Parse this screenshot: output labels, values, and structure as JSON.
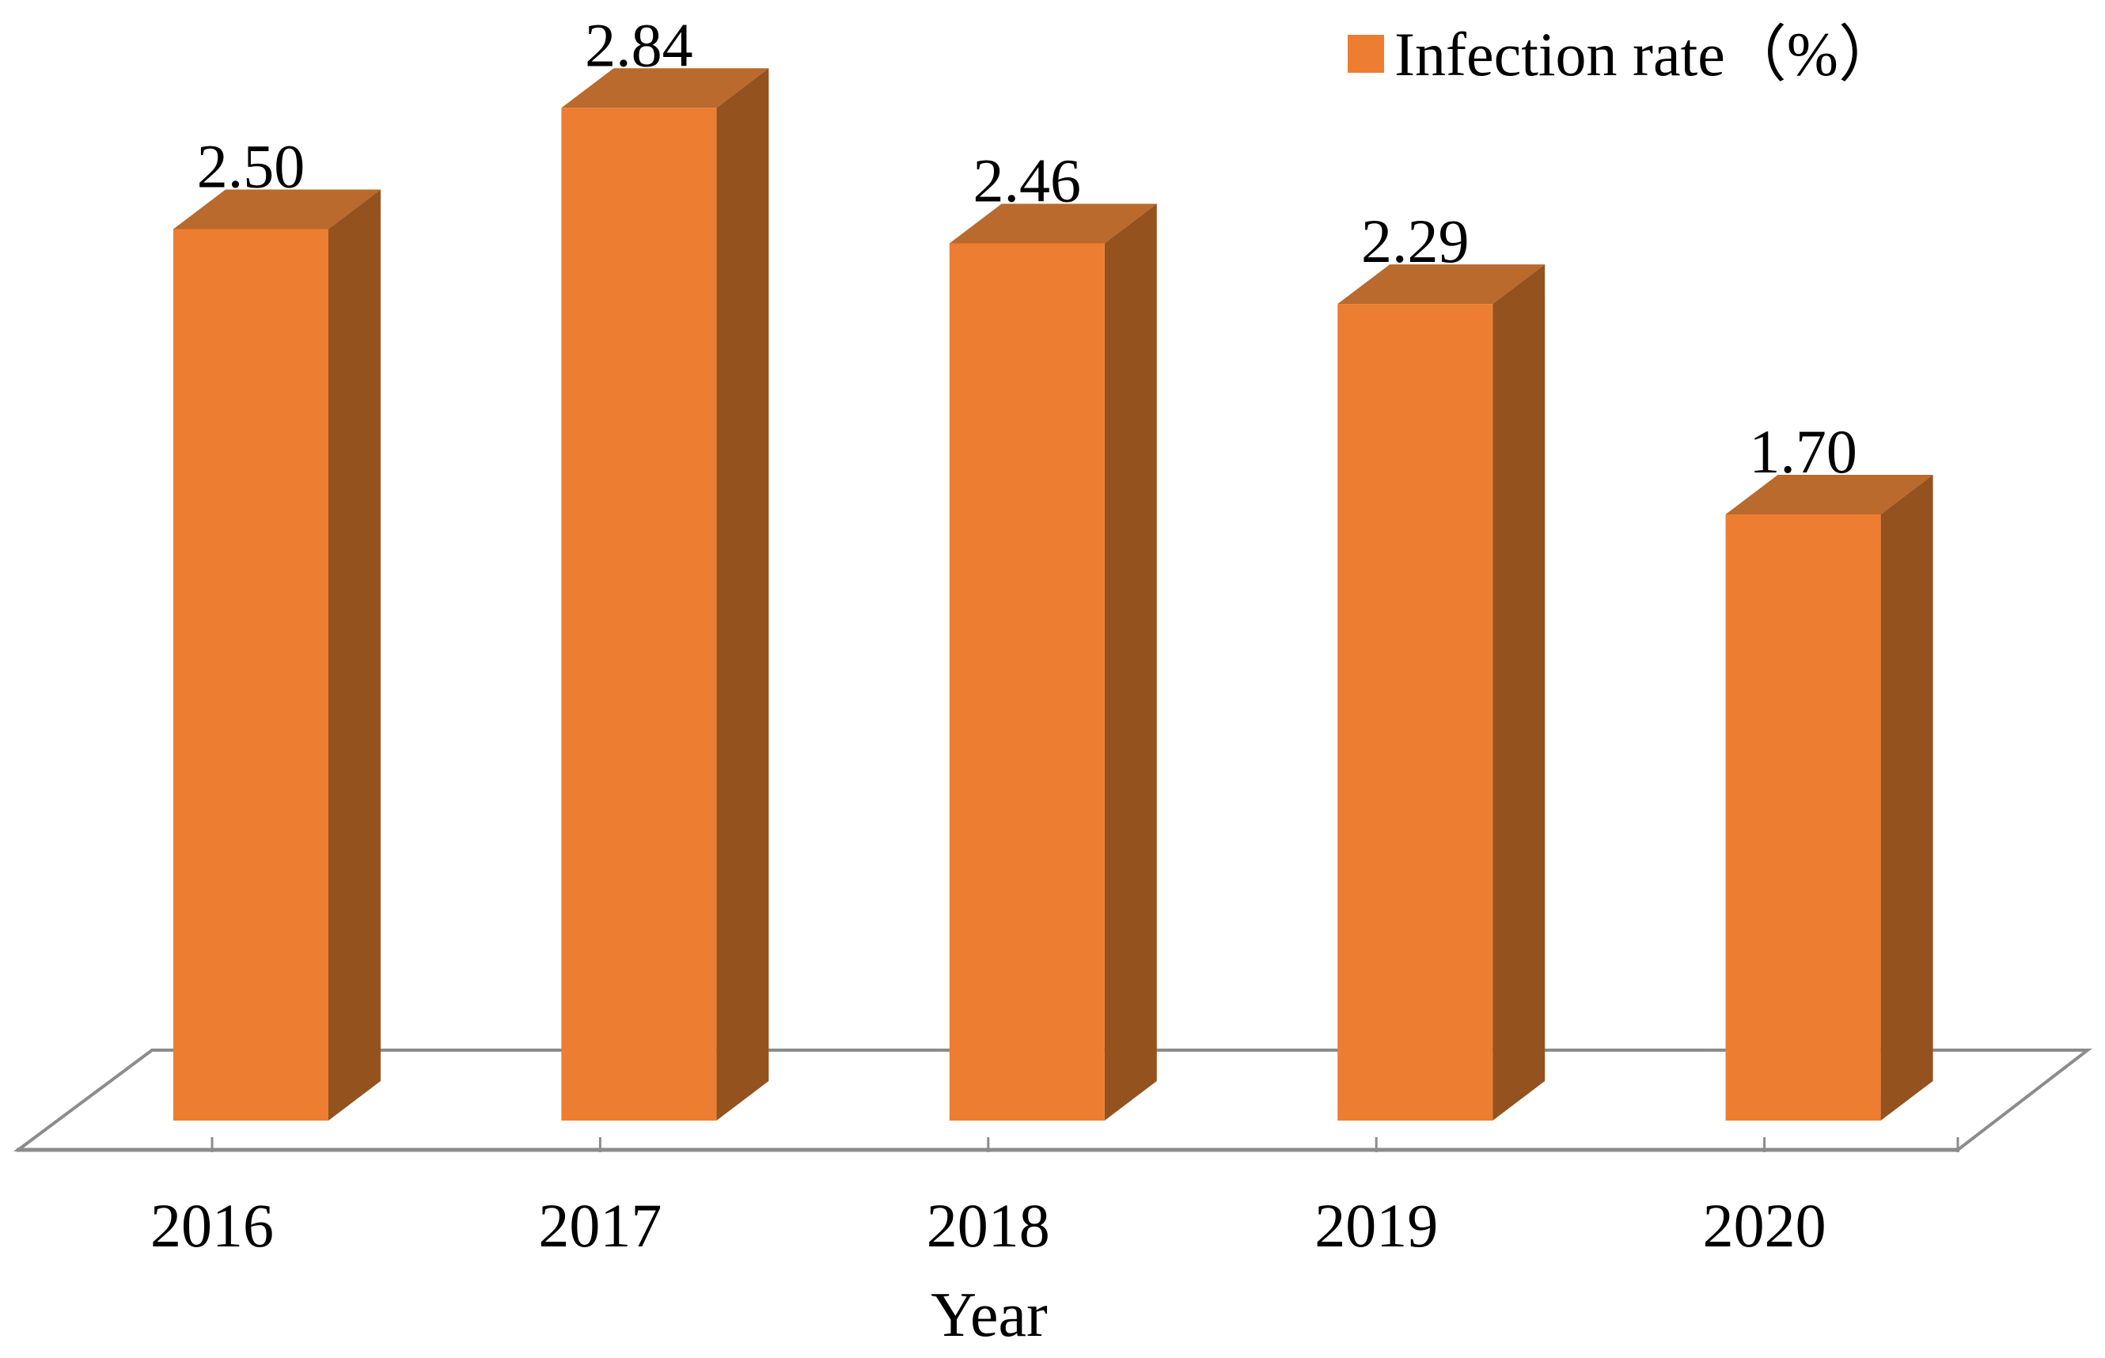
{
  "chart_data": {
    "type": "bar",
    "projection": "3d",
    "categories": [
      "2016",
      "2017",
      "2018",
      "2019",
      "2020"
    ],
    "series": [
      {
        "name": "Infection rate（%）",
        "values": [
          2.5,
          2.84,
          2.46,
          2.29,
          1.7
        ]
      }
    ],
    "data_labels": [
      "2.50",
      "2.84",
      "2.46",
      "2.29",
      "1.70"
    ],
    "title": "",
    "xlabel": "Year",
    "ylabel": "",
    "ylim": [
      0,
      3.2
    ],
    "grid": false,
    "legend_position": "top-right",
    "colors": {
      "bar_front": "#ED7D31",
      "bar_top": "#B96A2C",
      "bar_side": "#94521F",
      "axis_line": "#8C8C8C",
      "text": "#000000"
    }
  }
}
